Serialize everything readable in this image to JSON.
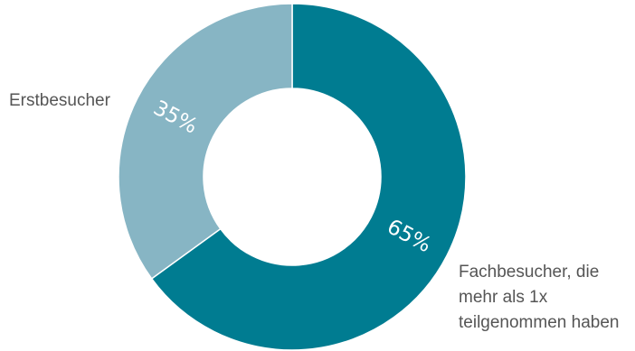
{
  "chart_data": {
    "type": "pie",
    "donut": true,
    "categories": [
      "Erstbesucher",
      "Fachbesucher, die\nmehr als 1x\nteilgenommen haben"
    ],
    "values": [
      35,
      65
    ],
    "value_labels": [
      "35%",
      "65%"
    ],
    "colors": [
      "#87b5c4",
      "#007c91"
    ],
    "title": "",
    "legend": "none"
  }
}
